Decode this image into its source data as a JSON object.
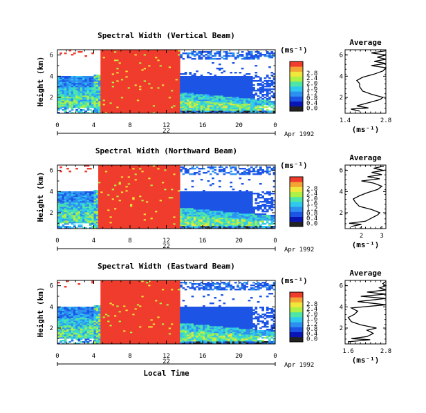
{
  "chart_data": [
    {
      "type": "heatmap",
      "title": "Spectral Width (Vertical Beam)",
      "xlabel": "",
      "ylabel": "Height (km)",
      "xlim": [
        0,
        24
      ],
      "ylim": [
        0.5,
        6.5
      ],
      "x_ticks": [
        "0",
        "4",
        "8",
        "12",
        "16",
        "20",
        "0"
      ],
      "y_ticks": [
        "2",
        "4",
        "6"
      ],
      "date_label": "22",
      "month_label": "Apr 1992",
      "colorbar": {
        "unit": "(ms⁻¹)",
        "levels": [
          "0.0",
          "0.4",
          "0.8",
          "1.2",
          "1.6",
          "2.0",
          "2.4",
          "2.8"
        ]
      },
      "notes": "Saturated (>2.8) from ~4.8 h to ~13.5 h at all heights; low-moderate widths (0.4-1.6) below ~4 km outside that window.",
      "profile": {
        "title": "Average",
        "xlabel": "(ms⁻¹)",
        "x_ticks": [
          "1.4",
          "2.8"
        ],
        "xlim": [
          1.4,
          2.8
        ],
        "ylim": [
          0.5,
          6.5
        ],
        "height": [
          0.7,
          0.9,
          1.0,
          1.2,
          1.5,
          1.8,
          2.0,
          2.3,
          2.6,
          3.0,
          3.3,
          3.6,
          3.9,
          4.2,
          4.5,
          4.8,
          5.0,
          5.2,
          5.4,
          5.6,
          5.8,
          6.0,
          6.2,
          6.4
        ],
        "value": [
          1.9,
          1.6,
          2.2,
          1.8,
          2.2,
          2.6,
          2.7,
          2.3,
          2.0,
          1.9,
          1.9,
          1.8,
          2.0,
          2.4,
          2.7,
          2.8,
          2.3,
          2.8,
          2.4,
          2.8,
          2.5,
          2.8,
          2.3,
          2.8
        ]
      }
    },
    {
      "type": "heatmap",
      "title": "Spectral Width (Northward Beam)",
      "xlabel": "",
      "ylabel": "Height (km)",
      "xlim": [
        0,
        24
      ],
      "ylim": [
        0.5,
        6.5
      ],
      "x_ticks": [
        "0",
        "4",
        "8",
        "12",
        "16",
        "20",
        "0"
      ],
      "y_ticks": [
        "2",
        "4",
        "6"
      ],
      "date_label": "22",
      "month_label": "Apr 1992",
      "colorbar": {
        "unit": "(ms⁻¹)",
        "levels": [
          "0.0",
          "0.4",
          "0.8",
          "1.2",
          "1.6",
          "2.0",
          "2.4",
          "2.8"
        ]
      },
      "notes": "Saturated (>2.8) from ~4.5 h to ~13.5 h; blue (0.4-0.8) band 2.3-4.5 km after 13.5 h.",
      "profile": {
        "title": "Average",
        "xlabel": "(ms⁻¹)",
        "x_ticks": [
          "2",
          "3"
        ],
        "xlim": [
          1.2,
          3.2
        ],
        "ylim": [
          0.5,
          6.5
        ],
        "height": [
          0.7,
          0.9,
          1.0,
          1.2,
          1.5,
          1.8,
          2.0,
          2.3,
          2.6,
          3.0,
          3.3,
          3.6,
          3.9,
          4.2,
          4.5,
          4.8,
          5.0,
          5.2,
          5.4,
          5.6,
          5.8,
          6.0,
          6.2,
          6.4
        ],
        "value": [
          1.5,
          2.0,
          1.4,
          2.2,
          2.5,
          2.8,
          2.9,
          2.5,
          1.9,
          1.7,
          1.6,
          1.9,
          2.3,
          2.8,
          3.0,
          2.6,
          2.0,
          2.9,
          2.3,
          3.0,
          2.5,
          3.1,
          2.6,
          3.1
        ]
      }
    },
    {
      "type": "heatmap",
      "title": "Spectral Width (Eastward Beam)",
      "xlabel": "Local Time",
      "ylabel": "Height (km)",
      "xlim": [
        0,
        24
      ],
      "ylim": [
        0.5,
        6.5
      ],
      "x_ticks": [
        "0",
        "4",
        "8",
        "12",
        "16",
        "20",
        "0"
      ],
      "y_ticks": [
        "2",
        "4",
        "6"
      ],
      "date_label": "22",
      "month_label": "Apr 1992",
      "colorbar": {
        "unit": "(ms⁻¹)",
        "levels": [
          "0.0",
          "0.4",
          "0.8",
          "1.2",
          "1.6",
          "2.0",
          "2.4",
          "2.8"
        ]
      },
      "notes": "Saturated (>2.8) from ~4.8 h to ~13.5 h; blue band 2.5-4.0 km after 14 h.",
      "profile": {
        "title": "Average",
        "xlabel": "(ms⁻¹)",
        "x_ticks": [
          "1.6",
          "2.8"
        ],
        "xlim": [
          1.5,
          2.8
        ],
        "ylim": [
          0.5,
          6.5
        ],
        "height": [
          0.7,
          0.9,
          1.0,
          1.2,
          1.5,
          1.8,
          2.0,
          2.3,
          2.6,
          3.0,
          3.3,
          3.6,
          3.9,
          4.2,
          4.5,
          4.8,
          5.0,
          5.2,
          5.4,
          5.6,
          5.8,
          6.0,
          6.2,
          6.4
        ],
        "value": [
          1.6,
          2.3,
          1.7,
          2.2,
          2.4,
          2.2,
          2.5,
          2.0,
          1.7,
          1.6,
          1.8,
          1.9,
          1.7,
          2.8,
          1.9,
          2.8,
          2.0,
          2.8,
          2.2,
          2.8,
          2.6,
          2.8,
          2.7,
          2.8
        ]
      }
    }
  ]
}
